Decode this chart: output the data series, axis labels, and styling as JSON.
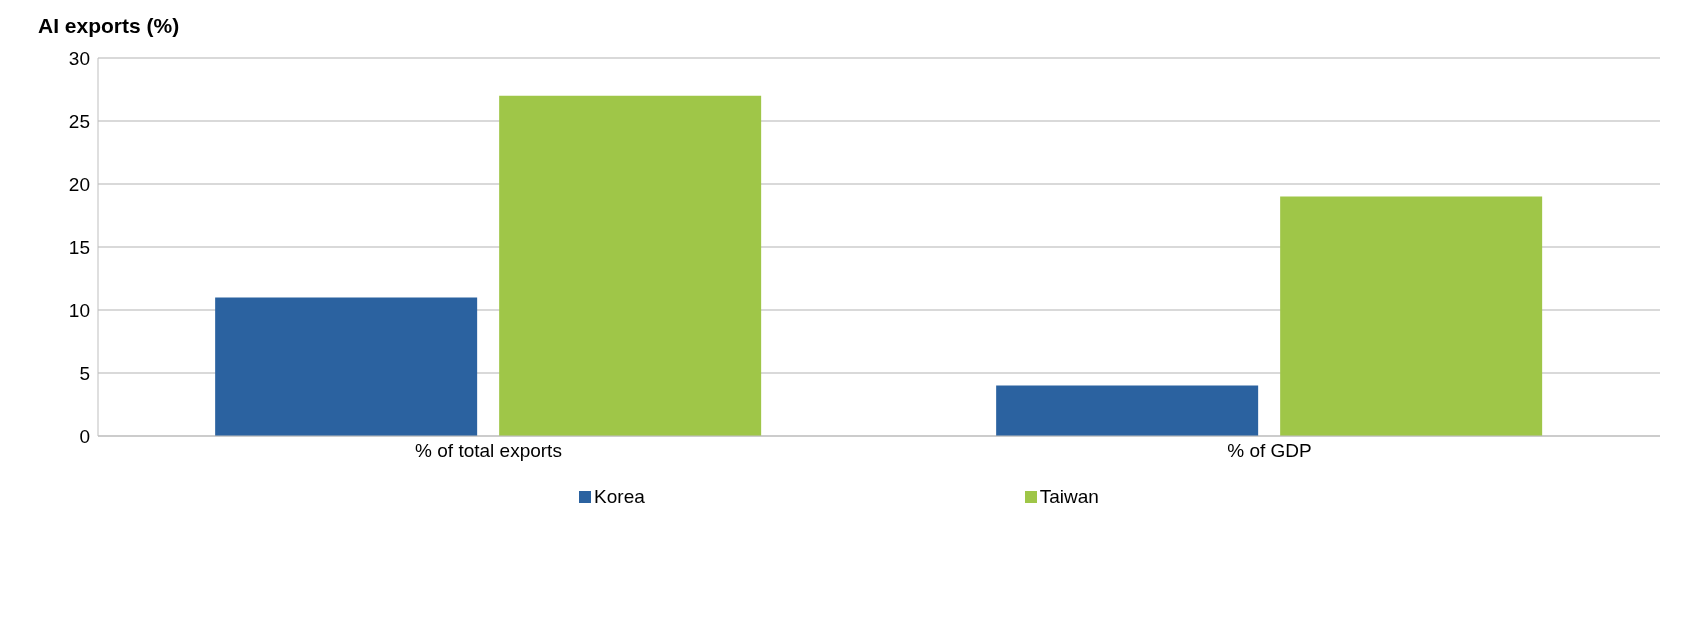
{
  "chart_data": {
    "type": "bar",
    "title": "AI exports (%)",
    "categories": [
      "% of total exports",
      "% of GDP"
    ],
    "series": [
      {
        "name": "Korea",
        "color": "#2b62a0",
        "values": [
          11,
          4
        ]
      },
      {
        "name": "Taiwan",
        "color": "#9fc648",
        "values": [
          27,
          19
        ]
      }
    ],
    "ylim": [
      0,
      30
    ],
    "yticks": [
      0,
      5,
      10,
      15,
      20,
      25,
      30
    ],
    "grid": "y",
    "legend": "bottom"
  }
}
